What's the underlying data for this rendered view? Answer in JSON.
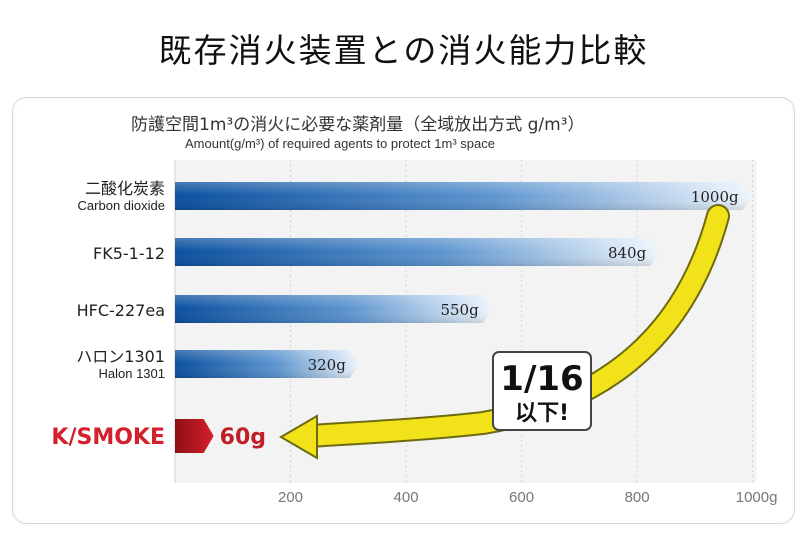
{
  "page": {
    "title": "既存消火装置との消火能力比較"
  },
  "chart_data": {
    "type": "bar",
    "orientation": "horizontal",
    "title": "防護空間1m³の消火に必要な薬剤量（全域放出方式 g/m³）",
    "subtitle": "Amount(g/m³) of required agents to protect 1m³ space",
    "categories": [
      {
        "main": "二酸化炭素",
        "sub": "Carbon dioxide"
      },
      {
        "main": "FK5-1-12",
        "sub": ""
      },
      {
        "main": "HFC-227ea",
        "sub": ""
      },
      {
        "main": "ハロン1301",
        "sub": "Halon 1301"
      },
      {
        "main": "K/SMOKE",
        "sub": ""
      }
    ],
    "values": [
      1000,
      840,
      550,
      320,
      60
    ],
    "value_labels": [
      "1000g",
      "840g",
      "550g",
      "320g",
      "60g"
    ],
    "highlight_index": 4,
    "x_ticks": [
      200,
      400,
      600,
      800
    ],
    "x_tick_labels": [
      "200",
      "400",
      "600",
      "800",
      "1000g"
    ],
    "x_tick_values": [
      200,
      400,
      600,
      800,
      1000
    ],
    "xlim": [
      0,
      1000
    ],
    "grid": true,
    "annotation": {
      "main": "1/16",
      "sub": "以下!"
    },
    "colors": {
      "bar_dark": "#0a4f9e",
      "bar_light": "#eef5fc",
      "highlight": "#d4202a",
      "highlight_dark": "#8e0f16",
      "arrow": "#f2e21a",
      "arrow_outline": "#6e6a10"
    }
  }
}
